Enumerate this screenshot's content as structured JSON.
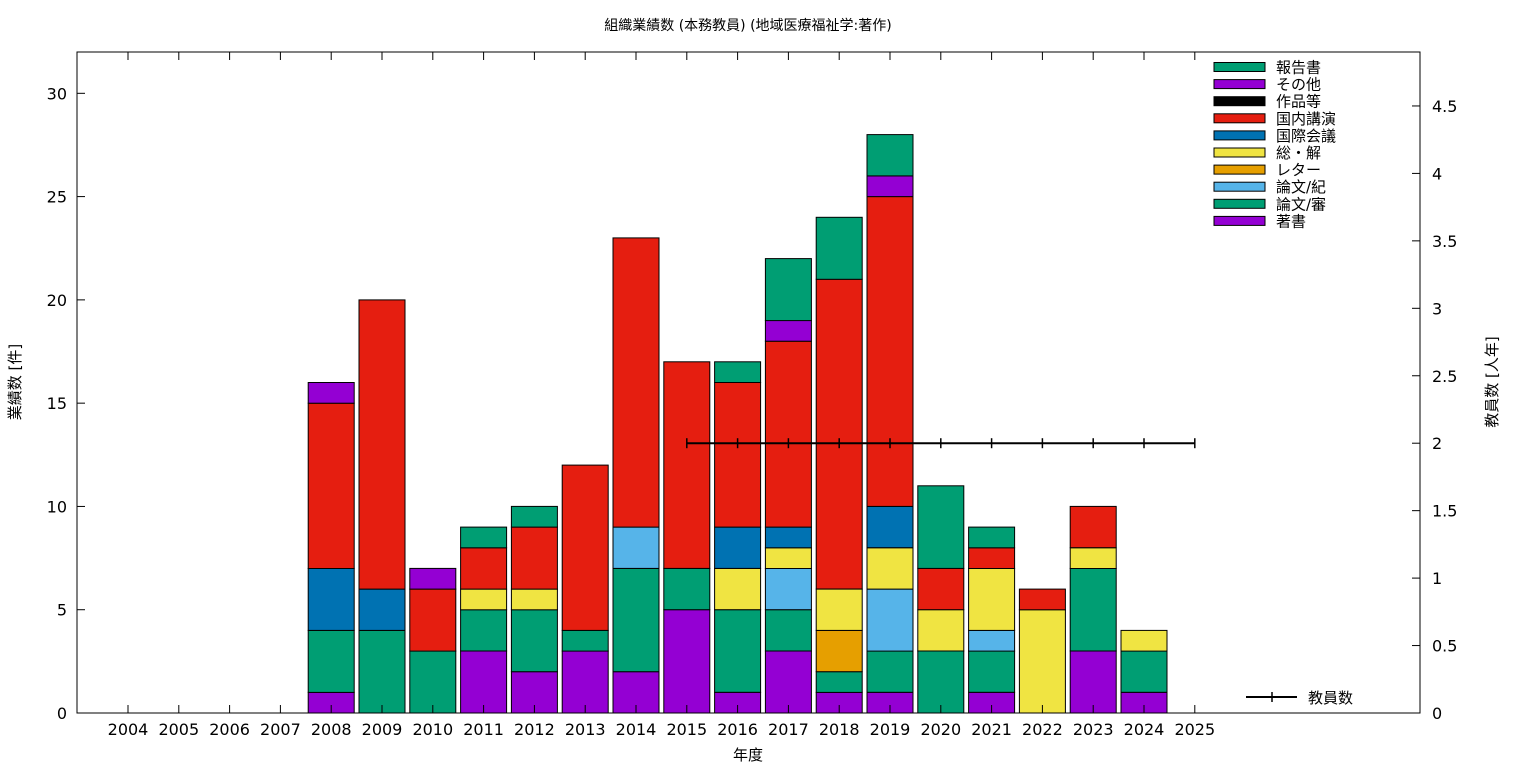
{
  "chart_data": {
    "type": "bar",
    "title": "組織業績数 (本務教員) (地域医療福祉学:著作)",
    "xlabel": "年度",
    "ylabel": "業績数 [件]",
    "y2label": "教員数 [人年]",
    "ylim": [
      0,
      32
    ],
    "y2lim": [
      0,
      4.9
    ],
    "yticks": [
      0,
      5,
      10,
      15,
      20,
      25,
      30
    ],
    "y2ticks": [
      0,
      0.5,
      1,
      1.5,
      2,
      2.5,
      3,
      3.5,
      4,
      4.5
    ],
    "grid": false,
    "legend_position": "top-right",
    "categories": [
      "2004",
      "2005",
      "2006",
      "2007",
      "2008",
      "2009",
      "2010",
      "2011",
      "2012",
      "2013",
      "2014",
      "2015",
      "2016",
      "2017",
      "2018",
      "2019",
      "2020",
      "2021",
      "2022",
      "2023",
      "2024",
      "2025"
    ],
    "series": [
      {
        "name": "著書",
        "color": "#9400d3",
        "values": [
          0,
          0,
          0,
          0,
          1,
          0,
          0,
          3,
          2,
          3,
          2,
          5,
          1,
          3,
          1,
          1,
          0,
          1,
          0,
          3,
          1,
          0
        ]
      },
      {
        "name": "論文/審",
        "color": "#009e73",
        "values": [
          0,
          0,
          0,
          0,
          3,
          4,
          3,
          2,
          3,
          1,
          5,
          2,
          4,
          2,
          1,
          2,
          3,
          2,
          0,
          4,
          2,
          0
        ]
      },
      {
        "name": "論文/紀",
        "color": "#56b4e9",
        "values": [
          0,
          0,
          0,
          0,
          0,
          0,
          0,
          0,
          0,
          0,
          2,
          0,
          0,
          2,
          0,
          3,
          0,
          1,
          0,
          0,
          0,
          0
        ]
      },
      {
        "name": "レター",
        "color": "#e69f00",
        "values": [
          0,
          0,
          0,
          0,
          0,
          0,
          0,
          0,
          0,
          0,
          0,
          0,
          0,
          0,
          2,
          0,
          0,
          0,
          0,
          0,
          0,
          0
        ]
      },
      {
        "name": "総・解",
        "color": "#f0e442",
        "values": [
          0,
          0,
          0,
          0,
          0,
          0,
          0,
          1,
          1,
          0,
          0,
          0,
          2,
          1,
          2,
          2,
          2,
          3,
          5,
          1,
          1,
          0
        ]
      },
      {
        "name": "国際会議",
        "color": "#0072b2",
        "values": [
          0,
          0,
          0,
          0,
          3,
          2,
          0,
          0,
          0,
          0,
          0,
          0,
          2,
          1,
          0,
          2,
          0,
          0,
          0,
          0,
          0,
          0
        ]
      },
      {
        "name": "国内講演",
        "color": "#e51e10",
        "values": [
          0,
          0,
          0,
          0,
          8,
          14,
          3,
          2,
          3,
          8,
          14,
          10,
          7,
          9,
          15,
          15,
          2,
          1,
          1,
          2,
          0,
          0
        ]
      },
      {
        "name": "作品等",
        "color": "#000000",
        "values": [
          0,
          0,
          0,
          0,
          0,
          0,
          0,
          0,
          0,
          0,
          0,
          0,
          0,
          0,
          0,
          0,
          0,
          0,
          0,
          0,
          0,
          0
        ]
      },
      {
        "name": "その他",
        "color": "#9400d3",
        "values": [
          0,
          0,
          0,
          0,
          1,
          0,
          1,
          0,
          0,
          0,
          0,
          0,
          0,
          1,
          0,
          1,
          0,
          0,
          0,
          0,
          0,
          0
        ]
      },
      {
        "name": "報告書",
        "color": "#009e73",
        "values": [
          0,
          0,
          0,
          0,
          0,
          0,
          0,
          1,
          1,
          0,
          0,
          0,
          1,
          3,
          3,
          2,
          4,
          1,
          0,
          0,
          0,
          0
        ]
      }
    ],
    "line_series": {
      "name": "教員数",
      "axis": "y2",
      "color": "#000000",
      "x": [
        "2015",
        "2016",
        "2017",
        "2018",
        "2019",
        "2020",
        "2021",
        "2022",
        "2023",
        "2024",
        "2025"
      ],
      "values": [
        2,
        2,
        2,
        2,
        2,
        2,
        2,
        2,
        2,
        2,
        2
      ]
    }
  }
}
